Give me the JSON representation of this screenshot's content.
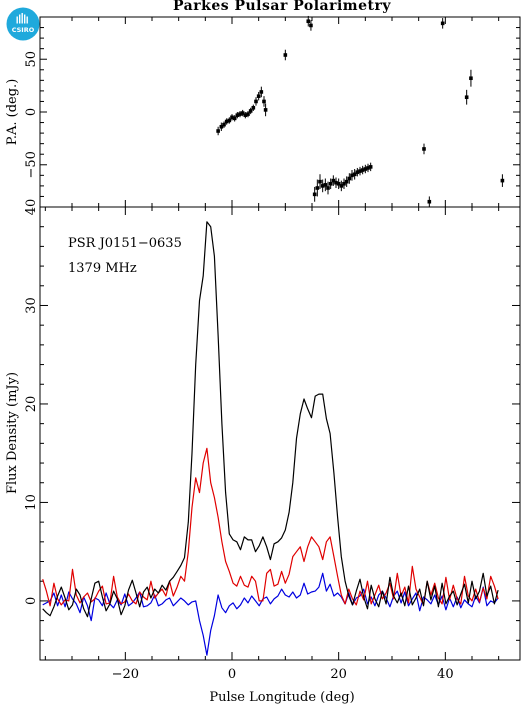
{
  "title": "Parkes Pulsar Polarimetry",
  "logo_text": "CSIRO",
  "chart_data": [
    {
      "type": "scatter",
      "name_shown": false,
      "ylabel": "P.A. (deg.)",
      "xlim": [
        -36,
        54
      ],
      "ylim": [
        -90,
        90
      ],
      "yticks": [
        -50,
        0,
        50
      ],
      "error_bars": true,
      "points": [
        {
          "x": -2.6,
          "y": -18,
          "e": 4
        },
        {
          "x": -2.0,
          "y": -14,
          "e": 4
        },
        {
          "x": -1.5,
          "y": -12,
          "e": 3
        },
        {
          "x": -1.0,
          "y": -9,
          "e": 3
        },
        {
          "x": -0.5,
          "y": -8,
          "e": 3
        },
        {
          "x": 0.0,
          "y": -5,
          "e": 3
        },
        {
          "x": 0.5,
          "y": -6,
          "e": 3
        },
        {
          "x": 1.0,
          "y": -3,
          "e": 3
        },
        {
          "x": 1.5,
          "y": -2,
          "e": 3
        },
        {
          "x": 2.0,
          "y": -1,
          "e": 3
        },
        {
          "x": 2.5,
          "y": -3,
          "e": 3
        },
        {
          "x": 3.0,
          "y": -2,
          "e": 3
        },
        {
          "x": 3.5,
          "y": 1,
          "e": 3
        },
        {
          "x": 4.0,
          "y": 4,
          "e": 3
        },
        {
          "x": 4.5,
          "y": 10,
          "e": 4
        },
        {
          "x": 5.0,
          "y": 15,
          "e": 4
        },
        {
          "x": 5.5,
          "y": 19,
          "e": 5
        },
        {
          "x": 6.0,
          "y": 10,
          "e": 5
        },
        {
          "x": 6.3,
          "y": 2,
          "e": 6
        },
        {
          "x": 10.0,
          "y": 54,
          "e": 5
        },
        {
          "x": 14.3,
          "y": 86,
          "e": 5
        },
        {
          "x": 14.8,
          "y": 82,
          "e": 5
        },
        {
          "x": 15.5,
          "y": -78,
          "e": 7
        },
        {
          "x": 16.0,
          "y": -72,
          "e": 8
        },
        {
          "x": 16.5,
          "y": -66,
          "e": 7
        },
        {
          "x": 17.0,
          "y": -70,
          "e": 6
        },
        {
          "x": 17.5,
          "y": -69,
          "e": 6
        },
        {
          "x": 18.0,
          "y": -72,
          "e": 6
        },
        {
          "x": 18.5,
          "y": -68,
          "e": 5
        },
        {
          "x": 19.0,
          "y": -65,
          "e": 5
        },
        {
          "x": 19.5,
          "y": -67,
          "e": 5
        },
        {
          "x": 20.0,
          "y": -68,
          "e": 5
        },
        {
          "x": 20.5,
          "y": -70,
          "e": 5
        },
        {
          "x": 21.0,
          "y": -68,
          "e": 5
        },
        {
          "x": 21.5,
          "y": -66,
          "e": 5
        },
        {
          "x": 22.0,
          "y": -63,
          "e": 5
        },
        {
          "x": 22.5,
          "y": -60,
          "e": 5
        },
        {
          "x": 23.0,
          "y": -59,
          "e": 5
        },
        {
          "x": 23.5,
          "y": -57,
          "e": 4
        },
        {
          "x": 24.0,
          "y": -56,
          "e": 4
        },
        {
          "x": 24.5,
          "y": -55,
          "e": 4
        },
        {
          "x": 25.0,
          "y": -54,
          "e": 4
        },
        {
          "x": 25.5,
          "y": -53,
          "e": 4
        },
        {
          "x": 26.0,
          "y": -52,
          "e": 4
        },
        {
          "x": 36.0,
          "y": -35,
          "e": 5
        },
        {
          "x": 37.0,
          "y": -85,
          "e": 5
        },
        {
          "x": 39.5,
          "y": 84,
          "e": 5
        },
        {
          "x": 44.0,
          "y": 14,
          "e": 7
        },
        {
          "x": 44.8,
          "y": 32,
          "e": 8
        },
        {
          "x": 50.7,
          "y": -65,
          "e": 6
        }
      ]
    },
    {
      "type": "line",
      "xlabel": "Pulse Longitude (deg)",
      "ylabel": "Flux Density (mJy)",
      "xlim": [
        -36,
        54
      ],
      "ylim": [
        -6,
        40
      ],
      "xticks": [
        -20,
        0,
        20,
        40
      ],
      "yticks": [
        0,
        10,
        20,
        30,
        40
      ],
      "annotations": [
        "PSR J0151−0635",
        "1379 MHz"
      ],
      "x_start": -35.5,
      "x_step": 0.7,
      "series": [
        {
          "color": "#000000",
          "values": [
            -0.8,
            -1.2,
            -1.5,
            -0.6,
            0.5,
            1.4,
            0.3,
            -0.9,
            -0.4,
            1.2,
            0.6,
            -0.8,
            -1.6,
            0.2,
            1.8,
            2.0,
            0.4,
            -1.0,
            -0.3,
            1.0,
            0.2,
            -1.4,
            -0.5,
            1.1,
            2.1,
            0.8,
            -0.6,
            0.9,
            1.4,
            0.3,
            1.2,
            0.8,
            1.6,
            1.1,
            2.0,
            2.4,
            3.0,
            3.6,
            4.4,
            8.0,
            15.0,
            24.0,
            30.5,
            33.0,
            38.5,
            38.0,
            35.0,
            27.0,
            18.0,
            11.0,
            6.8,
            6.2,
            6.0,
            5.2,
            6.5,
            6.2,
            6.2,
            5.0,
            5.6,
            6.5,
            5.5,
            4.2,
            5.8,
            6.0,
            6.4,
            7.2,
            9.0,
            12.0,
            16.5,
            19.0,
            20.5,
            19.5,
            18.6,
            20.8,
            21.0,
            21.0,
            18.5,
            17.0,
            13.0,
            8.5,
            4.5,
            2.0,
            0.5,
            -0.4,
            1.0,
            2.2,
            0.4,
            -0.8,
            1.6,
            0.2,
            -0.6,
            1.0,
            -0.3,
            2.4,
            0.5,
            -0.2,
            0.8,
            -0.5,
            1.5,
            -0.4,
            0.3,
            1.2,
            -0.5,
            2.0,
            0.1,
            1.5,
            -0.6,
            1.8,
            -0.3,
            0.5,
            1.0,
            -0.4,
            0.7,
            1.7,
            -0.2,
            2.0,
            0.2,
            1.0,
            2.8,
            0.5,
            1.5,
            -0.3,
            1.1
          ]
        },
        {
          "color": "#e00000",
          "values": [
            2.2,
            1.0,
            -0.5,
            1.8,
            0.2,
            -0.4,
            0.1,
            0.0,
            3.2,
            0.6,
            -0.2,
            0.4,
            0.8,
            -0.1,
            0.2,
            1.0,
            1.5,
            -0.3,
            -0.2,
            2.5,
            0.4,
            -0.3,
            -0.1,
            0.7,
            0.0,
            -0.3,
            0.9,
            0.4,
            0.1,
            2.0,
            0.3,
            0.8,
            1.2,
            0.5,
            2.0,
            0.5,
            1.4,
            2.5,
            2.0,
            5.0,
            9.5,
            12.5,
            11.0,
            14.0,
            15.5,
            12.0,
            10.5,
            8.5,
            6.0,
            4.0,
            3.0,
            1.8,
            1.5,
            2.5,
            1.6,
            1.4,
            2.5,
            2.0,
            0.0,
            0.0,
            2.8,
            3.2,
            1.5,
            1.7,
            3.0,
            1.8,
            2.7,
            4.5,
            5.0,
            5.5,
            4.0,
            5.5,
            6.5,
            6.0,
            5.5,
            4.2,
            6.0,
            6.5,
            4.5,
            2.5,
            0.6,
            -0.3,
            1.2,
            0.2,
            -0.4,
            1.0,
            0.1,
            2.0,
            -0.3,
            0.6,
            1.6,
            0.2,
            0.8,
            1.8,
            0.2,
            2.8,
            0.5,
            1.4,
            -0.2,
            3.5,
            1.2,
            0.4,
            -0.4,
            2.0,
            0.6,
            1.8,
            0.3,
            -0.3,
            2.4,
            0.1,
            1.6,
            0.2,
            -0.3,
            2.5,
            0.5,
            0.0,
            1.2,
            -0.1,
            1.3,
            0.2,
            2.5,
            1.5,
            0.2
          ]
        },
        {
          "color": "#0000e0",
          "values": [
            -0.4,
            -0.2,
            0.0,
            0.8,
            -0.5,
            0.6,
            -0.6,
            0.9,
            0.2,
            -0.3,
            -1.2,
            0.4,
            -0.5,
            -2.0,
            0.3,
            0.1,
            -0.5,
            0.8,
            -0.3,
            -0.7,
            0.1,
            -0.4,
            0.7,
            -0.5,
            -0.2,
            0.3,
            0.9,
            -0.6,
            -0.5,
            -0.2,
            0.6,
            -0.5,
            -0.3,
            0.1,
            0.3,
            -0.5,
            -0.1,
            0.3,
            0.0,
            -0.4,
            -0.1,
            0.0,
            -2.0,
            -3.5,
            -5.5,
            -3.0,
            -1.5,
            0.6,
            -0.7,
            -1.2,
            -0.5,
            -0.2,
            -0.8,
            -0.4,
            0.3,
            -0.2,
            0.5,
            0.0,
            -0.5,
            0.2,
            0.4,
            -0.3,
            0.2,
            0.5,
            1.2,
            0.6,
            0.4,
            0.9,
            0.3,
            0.6,
            1.8,
            0.7,
            0.9,
            1.0,
            1.4,
            2.8,
            1.0,
            1.7,
            0.5,
            0.8,
            0.4,
            -0.3,
            0.8,
            -0.4,
            0.3,
            0.5,
            1.2,
            -0.3,
            0.4,
            -0.5,
            0.6,
            1.0,
            0.3,
            -0.6,
            0.5,
            1.0,
            -0.2,
            0.9,
            -0.5,
            0.2,
            0.8,
            -1.0,
            0.4,
            0.1,
            -0.3,
            0.6,
            -0.4,
            0.5,
            -0.9,
            0.3,
            -0.6,
            0.4,
            -0.7,
            0.1,
            -0.3,
            -0.6,
            0.5,
            -0.2,
            1.4,
            -0.5,
            0.0,
            -0.2,
            0.3
          ]
        }
      ]
    }
  ]
}
